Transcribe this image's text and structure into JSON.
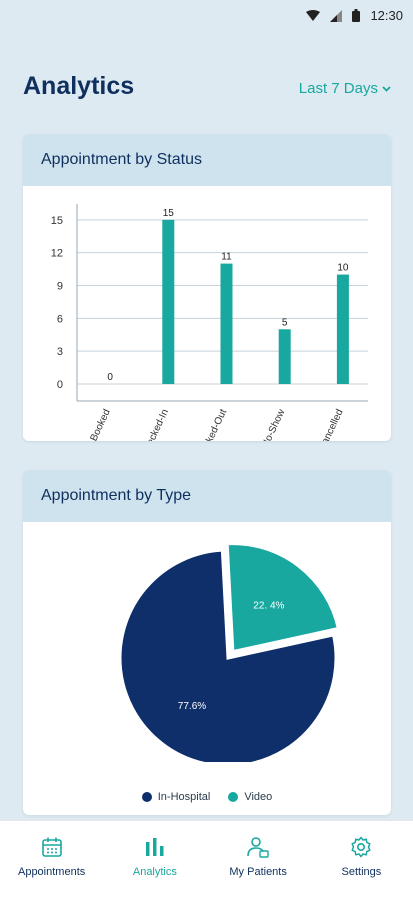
{
  "status_bar": {
    "time": "12:30"
  },
  "header": {
    "title": "Analytics",
    "range_label": "Last 7 Days"
  },
  "cards": {
    "status_title": "Appointment by Status",
    "type_title": "Appointment by Type"
  },
  "colors": {
    "teal": "#18a8a0",
    "navy": "#0f2f6b",
    "title": "#0f2f5f"
  },
  "chart_data": [
    {
      "type": "bar",
      "title": "Appointment by Status",
      "categories": [
        "Booked",
        "Checked-In",
        "Checked-Out",
        "No-Show",
        "Cancelled"
      ],
      "values": [
        0,
        15,
        11,
        5,
        10
      ],
      "yticks": [
        "0",
        "3",
        "6",
        "9",
        "12",
        "15"
      ],
      "ylim": [
        0,
        18
      ],
      "grid": true
    },
    {
      "type": "pie",
      "title": "Appointment by Type",
      "categories": [
        "In-Hospital",
        "Video"
      ],
      "values": [
        77.6,
        22.4
      ],
      "labels": [
        "77.6%",
        "22. 4%"
      ],
      "legend_position": "bottom"
    }
  ],
  "tabs": [
    {
      "label": "Appointments",
      "icon": "calendar-icon"
    },
    {
      "label": "Analytics",
      "icon": "bar-chart-icon"
    },
    {
      "label": "My Patients",
      "icon": "patients-icon"
    },
    {
      "label": "Settings",
      "icon": "gear-icon"
    }
  ]
}
